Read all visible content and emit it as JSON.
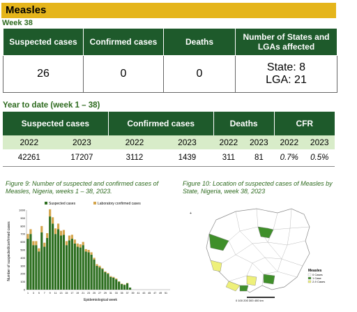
{
  "banner": {
    "title": "Measles",
    "color": "#e5b51b"
  },
  "week_label": "Week 38",
  "weekly_table": {
    "headers": [
      "Suspected cases",
      "Confirmed cases",
      "Deaths",
      "Number of States and LGAs affected"
    ],
    "suspected": "26",
    "confirmed": "0",
    "deaths": "0",
    "states": "State: 8",
    "lgas": "LGA: 21"
  },
  "ytd": {
    "title": "Year to date (week 1 – 38)",
    "groups": [
      "Suspected cases",
      "Confirmed cases",
      "Deaths",
      "CFR"
    ],
    "years": [
      "2022",
      "2023",
      "2022",
      "2023",
      "2022",
      "2023",
      "2022",
      "2023"
    ],
    "values": [
      "42261",
      "17207",
      "3112",
      "1439",
      "311",
      "81",
      "0.7%",
      "0.5%"
    ]
  },
  "figure9": {
    "caption": "Figure 9: Number of suspected and confirmed cases of Measles, Nigeria, weeks 1 – 38, 2023.",
    "legend_suspected": "Suspected cases",
    "legend_lab": "Laboratory confirmed cases"
  },
  "figure10": {
    "caption": "Figure 10: Location of suspected cases of Measles by State, Nigeria, week 38, 2023",
    "legend_title": "Measles",
    "legend_items": [
      "0 Cases",
      "1 Case",
      "2-9 Cases"
    ],
    "scale_label": "0 100 200 300 400 km"
  },
  "colors": {
    "header_green": "#1e5a2b",
    "caption_green": "#2d6a1e",
    "suspected": "#2c6e1f",
    "confirmed": "#d4a44a",
    "year_row": "#d8ecc9"
  },
  "chart_data": {
    "type": "bar",
    "title": "",
    "xlabel": "Epidemiological week",
    "ylabel": "Number of suspected/confirmed cases",
    "ylim": [
      0,
      1000
    ],
    "yticks": [
      0,
      100,
      200,
      300,
      400,
      500,
      600,
      700,
      800,
      900,
      1000
    ],
    "xticks": [
      "1",
      "3",
      "5",
      "7",
      "9",
      "11",
      "13",
      "15",
      "17",
      "19",
      "21",
      "23",
      "25",
      "27",
      "29",
      "31",
      "33",
      "35",
      "37",
      "39",
      "41",
      "43",
      "45",
      "47",
      "49",
      "51"
    ],
    "categories": [
      "1",
      "2",
      "3",
      "4",
      "5",
      "6",
      "7",
      "8",
      "9",
      "10",
      "11",
      "12",
      "13",
      "14",
      "15",
      "16",
      "17",
      "18",
      "19",
      "20",
      "21",
      "22",
      "23",
      "24",
      "25",
      "26",
      "27",
      "28",
      "29",
      "30",
      "31",
      "32",
      "33",
      "34",
      "35",
      "36",
      "37",
      "38"
    ],
    "series": [
      {
        "name": "Suspected cases",
        "values": [
          640,
          700,
          560,
          560,
          480,
          720,
          540,
          650,
          920,
          830,
          700,
          760,
          680,
          690,
          560,
          620,
          640,
          580,
          540,
          530,
          560,
          480,
          470,
          440,
          380,
          300,
          280,
          260,
          220,
          200,
          160,
          150,
          130,
          100,
          70,
          60,
          80,
          26
        ]
      },
      {
        "name": "Laboratory confirmed cases",
        "values": [
          60,
          60,
          50,
          50,
          40,
          80,
          50,
          60,
          90,
          80,
          70,
          70,
          60,
          60,
          50,
          60,
          50,
          50,
          40,
          40,
          40,
          30,
          30,
          30,
          20,
          20,
          20,
          10,
          10,
          10,
          10,
          10,
          10,
          5,
          5,
          5,
          5,
          0
        ]
      }
    ],
    "grid": false,
    "legend_position": "top"
  }
}
